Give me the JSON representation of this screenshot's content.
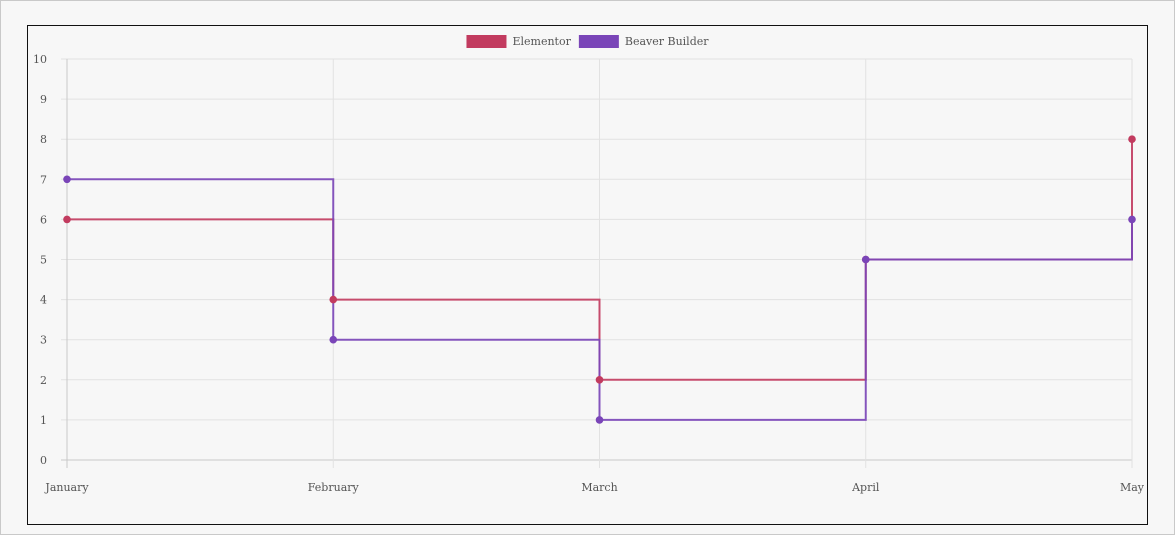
{
  "chart_data": {
    "type": "line",
    "stepped": true,
    "categories": [
      "January",
      "February",
      "March",
      "April",
      "May"
    ],
    "ylim": [
      0,
      10
    ],
    "yticks": [
      "0",
      "1",
      "2",
      "3",
      "4",
      "5",
      "6",
      "7",
      "8",
      "9",
      "10"
    ],
    "grid": true,
    "legend_position": "top",
    "series": [
      {
        "name": "Elementor",
        "color": "#c23b5f",
        "values": [
          6,
          4,
          2,
          5,
          8
        ]
      },
      {
        "name": "Beaver Builder",
        "color": "#7a45b8",
        "values": [
          7,
          3,
          1,
          5,
          6
        ]
      }
    ]
  }
}
